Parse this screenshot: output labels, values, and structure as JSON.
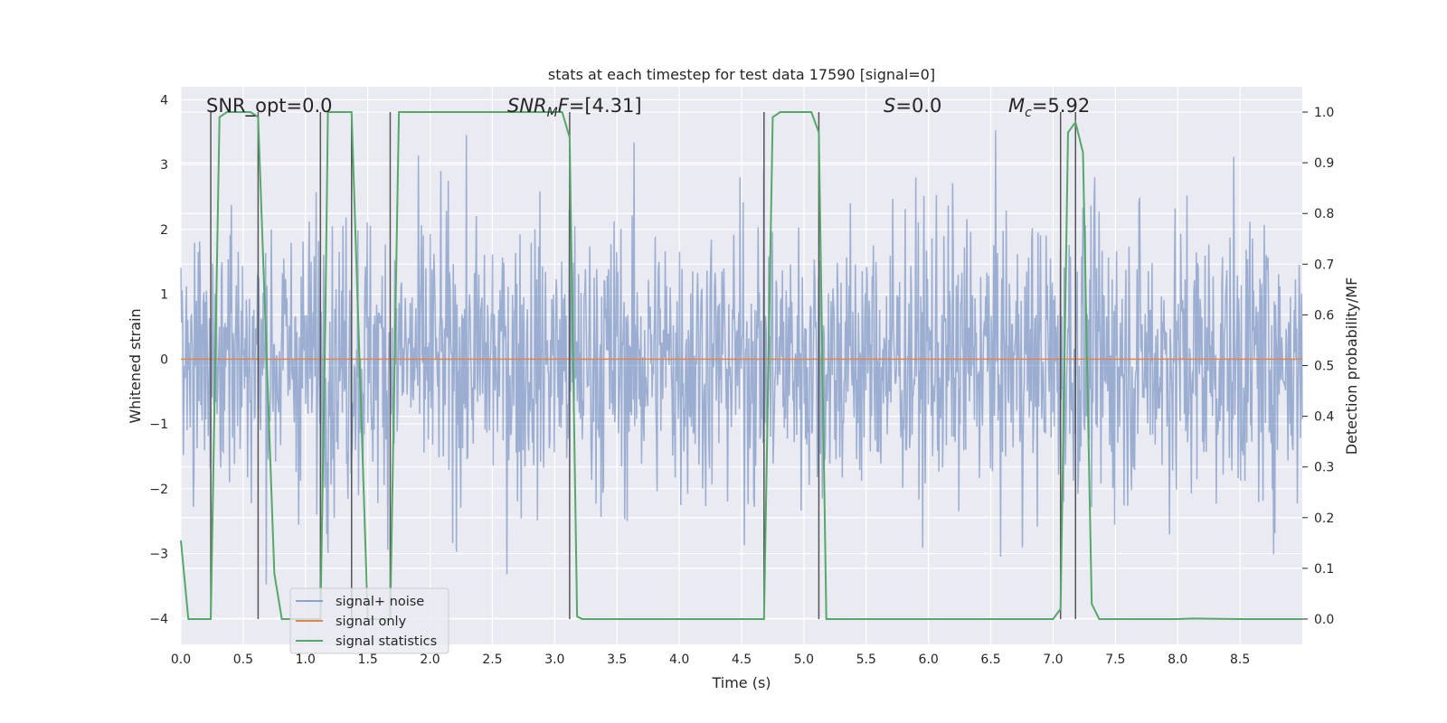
{
  "chart_data": {
    "type": "line",
    "title": "stats at each timestep for test data 17590 [signal=0]",
    "xlabel": "Time (s)",
    "ylabel": "Whitened strain",
    "y2label": "Detection probability/MF",
    "xlim": [
      0.0,
      9.0
    ],
    "ylim": [
      -4.4,
      4.2
    ],
    "y2lim": [
      -0.05,
      1.05
    ],
    "x_ticks": [
      0.0,
      0.5,
      1.0,
      1.5,
      2.0,
      2.5,
      3.0,
      3.5,
      4.0,
      4.5,
      5.0,
      5.5,
      6.0,
      6.5,
      7.0,
      7.5,
      8.0,
      8.5
    ],
    "x_tick_labels": [
      "0.0",
      "0.5",
      "1.0",
      "1.5",
      "2.0",
      "2.5",
      "3.0",
      "3.5",
      "4.0",
      "4.5",
      "5.0",
      "5.5",
      "6.0",
      "6.5",
      "7.0",
      "7.5",
      "8.0",
      "8.5"
    ],
    "y_ticks": [
      -4,
      -3,
      -2,
      -1,
      0,
      1,
      2,
      3,
      4
    ],
    "y_tick_labels": [
      "−4",
      "−3",
      "−2",
      "−1",
      "0",
      "1",
      "2",
      "3",
      "4"
    ],
    "y2_ticks": [
      0.0,
      0.1,
      0.2,
      0.3,
      0.4,
      0.5,
      0.6,
      0.7,
      0.8,
      0.9,
      1.0
    ],
    "y2_tick_labels": [
      "0.0",
      "0.1",
      "0.2",
      "0.3",
      "0.4",
      "0.5",
      "0.6",
      "0.7",
      "0.8",
      "0.9",
      "1.0"
    ],
    "grid": true,
    "legend_position": "lower-left",
    "annotations": {
      "snr_opt": "SNR_opt=0.0",
      "snr_mf_base": "SNR",
      "snr_mf_sub": "M",
      "snr_mf_rest": "F=[4.31]",
      "s": "S",
      "s_rest": "=0.0",
      "mc_base": "M",
      "mc_sub": "c",
      "mc_rest": "=5.92"
    },
    "series": [
      {
        "name": "signal+ noise",
        "color": "#4c72b0",
        "description_of_data": "whitened noise, approx. Gaussian, std ~1.1, peaks to about ±3.8",
        "sample_count": 1800,
        "noise_std": 1.1
      },
      {
        "name": "signal only",
        "color": "#dd8452",
        "x": [
          0.0,
          9.0
        ],
        "y": [
          0.0,
          0.0
        ]
      },
      {
        "name": "signal statistics",
        "color": "#55a868",
        "axis": "right",
        "x": [
          0.0,
          0.06,
          0.12,
          0.24,
          0.31,
          0.37,
          0.44,
          0.5,
          0.56,
          0.62,
          0.75,
          0.81,
          0.93,
          1.0,
          1.12,
          1.16,
          1.18,
          1.24,
          1.31,
          1.37,
          1.5,
          1.62,
          1.68,
          1.75,
          1.81,
          2.0,
          2.5,
          3.0,
          3.06,
          3.12,
          3.18,
          3.22,
          3.31,
          3.5,
          4.0,
          4.5,
          4.68,
          4.75,
          4.81,
          5.0,
          5.06,
          5.12,
          5.18,
          5.24,
          5.31,
          5.5,
          6.0,
          6.5,
          7.0,
          7.06,
          7.12,
          7.18,
          7.24,
          7.31,
          7.37,
          7.5,
          8.0,
          8.12,
          8.5,
          9.0
        ],
        "y": [
          0.155,
          0.0,
          0.0,
          0.0,
          0.99,
          1.0,
          1.0,
          1.0,
          1.0,
          0.99,
          0.09,
          0.0,
          0.0,
          0.0,
          0.0,
          0.6,
          1.0,
          1.0,
          1.0,
          1.0,
          0.0,
          0.0,
          0.0,
          1.0,
          1.0,
          1.0,
          1.0,
          1.0,
          1.0,
          0.95,
          0.005,
          0.0,
          0.0,
          0.0,
          0.0,
          0.0,
          0.0,
          0.99,
          1.0,
          1.0,
          1.0,
          0.96,
          0.0,
          0.0,
          0.0,
          0.0,
          0.0,
          0.0,
          0.0,
          0.02,
          0.96,
          0.98,
          0.92,
          0.03,
          0.0,
          0.0,
          0.0,
          0.001,
          0.0,
          0.0
        ]
      }
    ],
    "vertical_markers": [
      0.24,
      0.62,
      1.12,
      1.37,
      1.68,
      3.12,
      4.68,
      5.12,
      7.06,
      7.18
    ],
    "marker_color": "#555555"
  }
}
